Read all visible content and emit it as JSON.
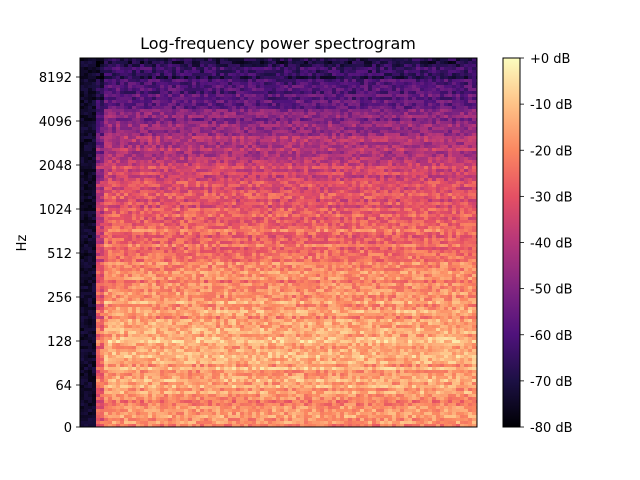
{
  "chart_data": {
    "type": "heatmap",
    "title": "Log-frequency power spectrogram",
    "xlabel": "",
    "ylabel": "Hz",
    "y_scale": "log2",
    "y_ticks": [
      "0",
      "64",
      "128",
      "256",
      "512",
      "1024",
      "2048",
      "4096",
      "8192"
    ],
    "y_tick_values": [
      0,
      64,
      128,
      256,
      512,
      1024,
      2048,
      4096,
      8192
    ],
    "ylim": [
      0,
      11025
    ],
    "x_ticks": [],
    "colormap": "magma",
    "colorbar": {
      "range_db": [
        -80,
        0
      ],
      "ticks": [
        "+0 dB",
        "-10 dB",
        "-20 dB",
        "-30 dB",
        "-40 dB",
        "-50 dB",
        "-60 dB",
        "-70 dB",
        "-80 dB"
      ],
      "tick_values": [
        0,
        -10,
        -20,
        -30,
        -40,
        -50,
        -60,
        -70,
        -80
      ]
    },
    "approx_level_profile_db": [
      {
        "hz": 32,
        "db": -20
      },
      {
        "hz": 64,
        "db": -15
      },
      {
        "hz": 128,
        "db": -14
      },
      {
        "hz": 256,
        "db": -18
      },
      {
        "hz": 512,
        "db": -22
      },
      {
        "hz": 1024,
        "db": -28
      },
      {
        "hz": 2048,
        "db": -36
      },
      {
        "hz": 4096,
        "db": -48
      },
      {
        "hz": 8192,
        "db": -65
      }
    ]
  },
  "colors": {
    "magma": [
      "#000004",
      "#1c1044",
      "#4f127b",
      "#812581",
      "#b5367a",
      "#e55064",
      "#fb8761",
      "#fec287",
      "#fcfdbf"
    ]
  }
}
